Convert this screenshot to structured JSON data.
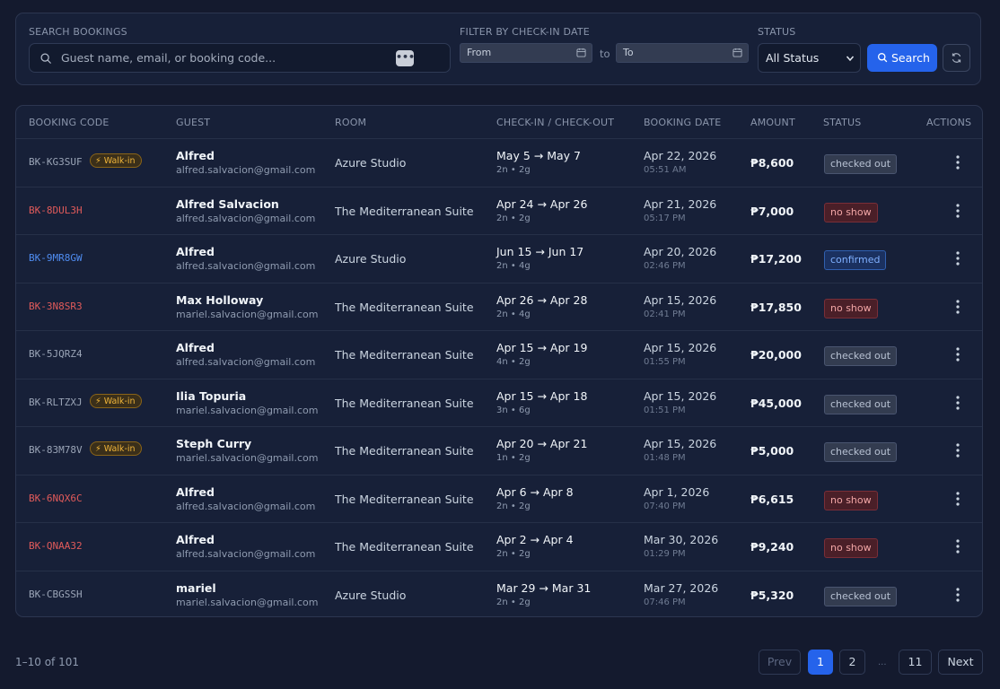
{
  "filters": {
    "search_label": "SEARCH BOOKINGS",
    "search_placeholder": "Guest name, email, or booking code...",
    "search_icon": "search-icon",
    "date_label": "FILTER BY CHECK-IN DATE",
    "from_placeholder": "From",
    "to_text": "to",
    "to_placeholder": "To",
    "status_label": "STATUS",
    "status_selected": "All Status",
    "search_button": "Search",
    "dots_button": "•••"
  },
  "table": {
    "headers": [
      "BOOKING CODE",
      "GUEST",
      "ROOM",
      "CHECK-IN / CHECK-OUT",
      "BOOKING DATE",
      "AMOUNT",
      "STATUS",
      "ACTIONS"
    ],
    "rows": [
      {
        "code": "BK-KG3SUF",
        "walkin": "⚡ Walk-in",
        "guest": "Alfred",
        "email": "alfred.salvacion@gmail.com",
        "room": "Azure Studio",
        "dates": "May 5 → May 7",
        "nights": "2n • 2g",
        "booking_date": "Apr 22, 2026",
        "booking_time": "05:51 AM",
        "amount": "₱8,600",
        "status": "checked out"
      },
      {
        "code": "BK-8DUL3H",
        "walkin": "",
        "guest": "Alfred Salvacion",
        "email": "alfred.salvacion@gmail.com",
        "room": "The Mediterranean Suite",
        "dates": "Apr 24 → Apr 26",
        "nights": "2n • 2g",
        "booking_date": "Apr 21, 2026",
        "booking_time": "05:17 PM",
        "amount": "₱7,000",
        "status": "no show"
      },
      {
        "code": "BK-9MR8GW",
        "walkin": "",
        "guest": "Alfred",
        "email": "alfred.salvacion@gmail.com",
        "room": "Azure Studio",
        "dates": "Jun 15 → Jun 17",
        "nights": "2n • 4g",
        "booking_date": "Apr 20, 2026",
        "booking_time": "02:46 PM",
        "amount": "₱17,200",
        "status": "confirmed"
      },
      {
        "code": "BK-3N8SR3",
        "walkin": "",
        "guest": "Max Holloway",
        "email": "mariel.salvacion@gmail.com",
        "room": "The Mediterranean Suite",
        "dates": "Apr 26 → Apr 28",
        "nights": "2n • 4g",
        "booking_date": "Apr 15, 2026",
        "booking_time": "02:41 PM",
        "amount": "₱17,850",
        "status": "no show"
      },
      {
        "code": "BK-5JQRZ4",
        "walkin": "",
        "guest": "Alfred",
        "email": "alfred.salvacion@gmail.com",
        "room": "The Mediterranean Suite",
        "dates": "Apr 15 → Apr 19",
        "nights": "4n • 2g",
        "booking_date": "Apr 15, 2026",
        "booking_time": "01:55 PM",
        "amount": "₱20,000",
        "status": "checked out"
      },
      {
        "code": "BK-RLTZXJ",
        "walkin": "⚡ Walk-in",
        "guest": "Ilia Topuria",
        "email": "mariel.salvacion@gmail.com",
        "room": "The Mediterranean Suite",
        "dates": "Apr 15 → Apr 18",
        "nights": "3n • 6g",
        "booking_date": "Apr 15, 2026",
        "booking_time": "01:51 PM",
        "amount": "₱45,000",
        "status": "checked out"
      },
      {
        "code": "BK-83M78V",
        "walkin": "⚡ Walk-in",
        "guest": "Steph Curry",
        "email": "mariel.salvacion@gmail.com",
        "room": "The Mediterranean Suite",
        "dates": "Apr 20 → Apr 21",
        "nights": "1n • 2g",
        "booking_date": "Apr 15, 2026",
        "booking_time": "01:48 PM",
        "amount": "₱5,000",
        "status": "checked out"
      },
      {
        "code": "BK-6NQX6C",
        "walkin": "",
        "guest": "Alfred",
        "email": "alfred.salvacion@gmail.com",
        "room": "The Mediterranean Suite",
        "dates": "Apr 6 → Apr 8",
        "nights": "2n • 2g",
        "booking_date": "Apr 1, 2026",
        "booking_time": "07:40 PM",
        "amount": "₱6,615",
        "status": "no show"
      },
      {
        "code": "BK-QNAA32",
        "walkin": "",
        "guest": "Alfred",
        "email": "alfred.salvacion@gmail.com",
        "room": "The Mediterranean Suite",
        "dates": "Apr 2 → Apr 4",
        "nights": "2n • 2g",
        "booking_date": "Mar 30, 2026",
        "booking_time": "01:29 PM",
        "amount": "₱9,240",
        "status": "no show"
      },
      {
        "code": "BK-CBGSSH",
        "walkin": "",
        "guest": "mariel",
        "email": "mariel.salvacion@gmail.com",
        "room": "Azure Studio",
        "dates": "Mar 29 → Mar 31",
        "nights": "2n • 2g",
        "booking_date": "Mar 27, 2026",
        "booking_time": "07:46 PM",
        "amount": "₱5,320",
        "status": "checked out"
      }
    ]
  },
  "pagination": {
    "info": "1–10 of 101",
    "prev": "Prev",
    "pages": [
      "1",
      "2",
      "11"
    ],
    "ellipsis": "...",
    "next": "Next"
  },
  "colors": {
    "accent": "#2563eb",
    "code_default": "#9aa4b6",
    "code_no_show": "#e05a5a",
    "code_confirmed": "#4f8cf0"
  }
}
